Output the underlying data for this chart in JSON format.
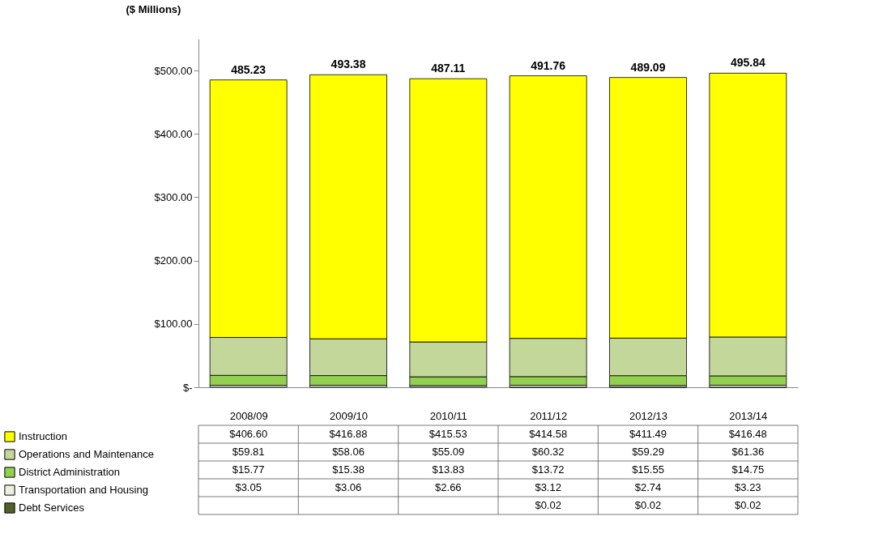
{
  "chart_data": {
    "type": "bar",
    "stacked": true,
    "ylabel": "($ Millions)",
    "categories": [
      "2008/09",
      "2009/10",
      "2010/11",
      "2011/12",
      "2012/13",
      "2013/14"
    ],
    "series": [
      {
        "name": "Debt Services",
        "color": "#4f6228",
        "values": [
          null,
          null,
          null,
          0.02,
          0.02,
          0.02
        ],
        "value_labels": [
          null,
          null,
          null,
          "$0.02",
          "$0.02",
          "$0.02"
        ]
      },
      {
        "name": "Transportation and Housing",
        "color": "#ebf1de",
        "values": [
          3.05,
          3.06,
          2.66,
          3.12,
          2.74,
          3.23
        ],
        "value_labels": [
          "$3.05",
          "$3.06",
          "$2.66",
          "$3.12",
          "$2.74",
          "$3.23"
        ]
      },
      {
        "name": "District Administration",
        "color": "#92d050",
        "values": [
          15.77,
          15.38,
          13.83,
          13.72,
          15.55,
          14.75
        ],
        "value_labels": [
          "$15.77",
          "$15.38",
          "$13.83",
          "$13.72",
          "$15.55",
          "$14.75"
        ]
      },
      {
        "name": "Operations and Maintenance",
        "color": "#c4d79b",
        "values": [
          59.81,
          58.06,
          55.09,
          60.32,
          59.29,
          61.36
        ],
        "value_labels": [
          "$59.81",
          "$58.06",
          "$55.09",
          "$60.32",
          "$59.29",
          "$61.36"
        ]
      },
      {
        "name": "Instruction",
        "color": "#ffff00",
        "values": [
          406.6,
          416.88,
          415.53,
          414.58,
          411.49,
          416.48
        ],
        "value_labels": [
          "$406.60",
          "$416.88",
          "$415.53",
          "$414.58",
          "$411.49",
          "$416.48"
        ]
      }
    ],
    "totals": [
      "485.23",
      "493.38",
      "487.11",
      "491.76",
      "489.09",
      "495.84"
    ],
    "ylim": [
      0,
      550
    ],
    "yticks": [
      {
        "value": 0,
        "label": "$-"
      },
      {
        "value": 100,
        "label": "$100.00"
      },
      {
        "value": 200,
        "label": "$200.00"
      },
      {
        "value": 300,
        "label": "$300.00"
      },
      {
        "value": 400,
        "label": "$400.00"
      },
      {
        "value": 500,
        "label": "$500.00"
      }
    ],
    "legend": "bottom",
    "grid": false
  }
}
